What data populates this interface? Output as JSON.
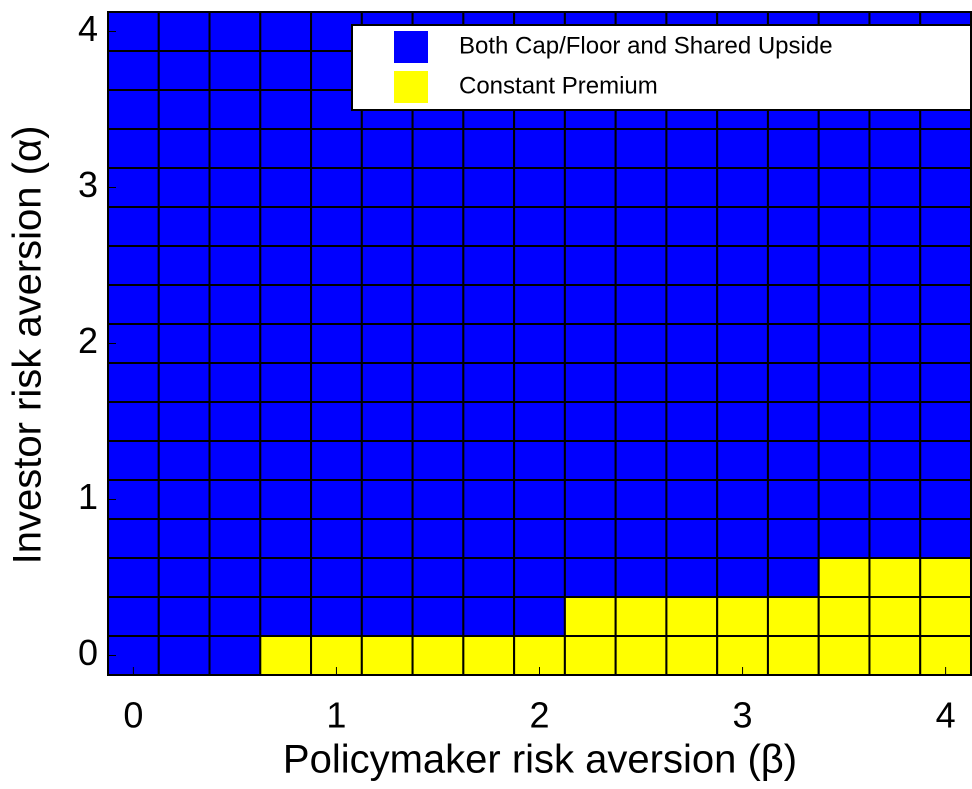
{
  "chart_data": {
    "type": "heatmap",
    "xlabel": "Policymaker risk aversion (β)",
    "ylabel": "Investor risk aversion (α)",
    "x": [
      0,
      0.25,
      0.5,
      0.75,
      1,
      1.25,
      1.5,
      1.75,
      2,
      2.25,
      2.5,
      2.75,
      3,
      3.25,
      3.5,
      3.75,
      4
    ],
    "y": [
      0,
      0.25,
      0.5,
      0.75,
      1,
      1.25,
      1.5,
      1.75,
      2,
      2.25,
      2.5,
      2.75,
      3,
      3.25,
      3.5,
      3.75,
      4
    ],
    "series": [
      {
        "name": "Both Cap/Floor and Shared Upside",
        "color": "#0000ff"
      },
      {
        "name": "Constant Premium",
        "color": "#ffff00"
      }
    ],
    "z": [
      [
        0,
        0,
        0,
        1,
        1,
        1,
        1,
        1,
        1,
        1,
        1,
        1,
        1,
        1,
        1,
        1,
        1
      ],
      [
        0,
        0,
        0,
        0,
        0,
        0,
        0,
        0,
        0,
        1,
        1,
        1,
        1,
        1,
        1,
        1,
        1
      ],
      [
        0,
        0,
        0,
        0,
        0,
        0,
        0,
        0,
        0,
        0,
        0,
        0,
        0,
        0,
        1,
        1,
        1
      ],
      [
        0,
        0,
        0,
        0,
        0,
        0,
        0,
        0,
        0,
        0,
        0,
        0,
        0,
        0,
        0,
        0,
        0
      ],
      [
        0,
        0,
        0,
        0,
        0,
        0,
        0,
        0,
        0,
        0,
        0,
        0,
        0,
        0,
        0,
        0,
        0
      ],
      [
        0,
        0,
        0,
        0,
        0,
        0,
        0,
        0,
        0,
        0,
        0,
        0,
        0,
        0,
        0,
        0,
        0
      ],
      [
        0,
        0,
        0,
        0,
        0,
        0,
        0,
        0,
        0,
        0,
        0,
        0,
        0,
        0,
        0,
        0,
        0
      ],
      [
        0,
        0,
        0,
        0,
        0,
        0,
        0,
        0,
        0,
        0,
        0,
        0,
        0,
        0,
        0,
        0,
        0
      ],
      [
        0,
        0,
        0,
        0,
        0,
        0,
        0,
        0,
        0,
        0,
        0,
        0,
        0,
        0,
        0,
        0,
        0
      ],
      [
        0,
        0,
        0,
        0,
        0,
        0,
        0,
        0,
        0,
        0,
        0,
        0,
        0,
        0,
        0,
        0,
        0
      ],
      [
        0,
        0,
        0,
        0,
        0,
        0,
        0,
        0,
        0,
        0,
        0,
        0,
        0,
        0,
        0,
        0,
        0
      ],
      [
        0,
        0,
        0,
        0,
        0,
        0,
        0,
        0,
        0,
        0,
        0,
        0,
        0,
        0,
        0,
        0,
        0
      ],
      [
        0,
        0,
        0,
        0,
        0,
        0,
        0,
        0,
        0,
        0,
        0,
        0,
        0,
        0,
        0,
        0,
        0
      ],
      [
        0,
        0,
        0,
        0,
        0,
        0,
        0,
        0,
        0,
        0,
        0,
        0,
        0,
        0,
        0,
        0,
        0
      ],
      [
        0,
        0,
        0,
        0,
        0,
        0,
        0,
        0,
        0,
        0,
        0,
        0,
        0,
        0,
        0,
        0,
        0
      ],
      [
        0,
        0,
        0,
        0,
        0,
        0,
        0,
        0,
        0,
        0,
        0,
        0,
        0,
        0,
        0,
        0,
        0
      ],
      [
        0,
        0,
        0,
        0,
        0,
        0,
        0,
        0,
        0,
        0,
        0,
        0,
        0,
        0,
        0,
        0,
        0
      ]
    ],
    "xlim": [
      -0.125,
      4.125
    ],
    "ylim": [
      -0.125,
      4.125
    ],
    "xticks": [
      0,
      1,
      2,
      3,
      4
    ],
    "yticks": [
      0,
      1,
      2,
      3,
      4
    ],
    "legend": "upper right"
  }
}
